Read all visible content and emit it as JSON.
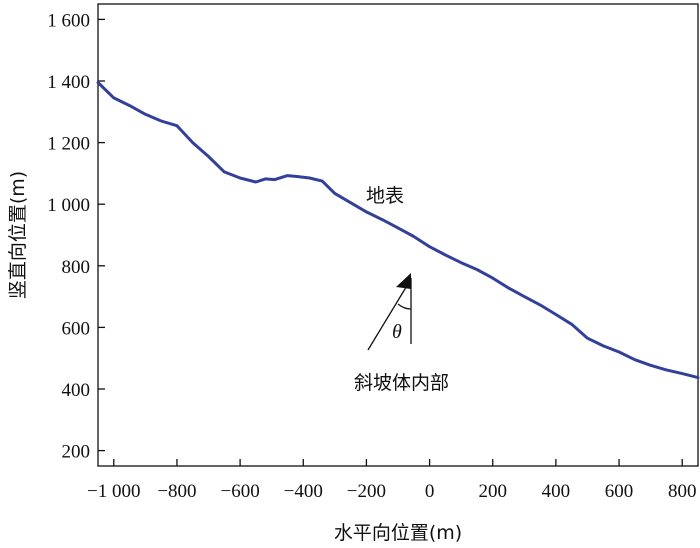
{
  "chart_data": {
    "type": "line",
    "xlabel": "水平向位置(m)",
    "ylabel": "竖直向位置(m)",
    "xlim": [
      -1050,
      850
    ],
    "ylim": [
      150,
      1650
    ],
    "xticks": [
      -1000,
      -800,
      -600,
      -400,
      -200,
      0,
      200,
      400,
      600,
      800
    ],
    "xtick_labels": [
      "−1 000",
      "−800",
      "−600",
      "−400",
      "−200",
      "0",
      "200",
      "400",
      "600",
      "800"
    ],
    "yticks": [
      200,
      400,
      600,
      800,
      1000,
      1200,
      1400,
      1600
    ],
    "ytick_labels": [
      "200",
      "400",
      "600",
      "800",
      "1 000",
      "1 200",
      "1 400",
      "1 600"
    ],
    "grid": false,
    "series": [
      {
        "color": "#33409a",
        "x": [
          -1050,
          -1000,
          -950,
          -900,
          -850,
          -800,
          -750,
          -700,
          -650,
          -600,
          -550,
          -520,
          -490,
          -450,
          -420,
          -380,
          -340,
          -300,
          -250,
          -200,
          -150,
          -100,
          -50,
          0,
          50,
          100,
          150,
          200,
          250,
          300,
          350,
          400,
          450,
          500,
          550,
          600,
          650,
          700,
          750,
          800,
          850
        ],
        "y": [
          1395,
          1345,
          1320,
          1292,
          1270,
          1255,
          1200,
          1155,
          1105,
          1085,
          1072,
          1082,
          1080,
          1093,
          1090,
          1085,
          1075,
          1035,
          1005,
          975,
          950,
          923,
          895,
          862,
          835,
          810,
          788,
          760,
          728,
          700,
          673,
          642,
          610,
          565,
          540,
          520,
          495,
          477,
          462,
          450,
          437
        ]
      }
    ],
    "annotations": {
      "surface_label": "地表",
      "interior_label": "斜坡体内部",
      "angle_symbol": "θ"
    }
  }
}
